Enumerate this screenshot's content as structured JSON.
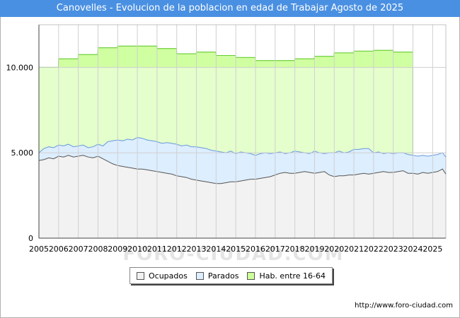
{
  "chart_data": {
    "type": "area",
    "title": "Canovelles - Evolucion de la poblacion en edad de Trabajar Agosto de 2025",
    "xlabel": "",
    "ylabel": "",
    "xlim": [
      2005,
      2025.67
    ],
    "ylim": [
      0,
      12500
    ],
    "x_ticks": [
      "2005",
      "2006",
      "2007",
      "2008",
      "2009",
      "2010",
      "2011",
      "2012",
      "2013",
      "2014",
      "2015",
      "2016",
      "2017",
      "2018",
      "2019",
      "2020",
      "2021",
      "2022",
      "2023",
      "2024",
      "2025"
    ],
    "y_ticks": [
      {
        "value": 0,
        "label": "0"
      },
      {
        "value": 5000,
        "label": "5.000"
      },
      {
        "value": 10000,
        "label": "10.000"
      }
    ],
    "series": [
      {
        "name": "Hab. entre 16-64",
        "color": "#ccff99",
        "x": [
          2005.0,
          2005.99,
          2006.0,
          2006.99,
          2007.0,
          2007.99,
          2008.0,
          2008.99,
          2009.0,
          2009.99,
          2010.0,
          2010.99,
          2011.0,
          2011.99,
          2012.0,
          2012.99,
          2013.0,
          2013.99,
          2014.0,
          2014.99,
          2015.0,
          2015.99,
          2016.0,
          2016.99,
          2017.0,
          2017.99,
          2018.0,
          2018.99,
          2019.0,
          2019.99,
          2020.0,
          2020.99,
          2021.0,
          2021.99,
          2022.0,
          2022.99,
          2023.0,
          2023.99
        ],
        "values": [
          10000,
          10000,
          10500,
          10500,
          10750,
          10750,
          11150,
          11150,
          11250,
          11250,
          11250,
          11250,
          11100,
          11100,
          10800,
          10800,
          10900,
          10900,
          10700,
          10700,
          10580,
          10580,
          10400,
          10400,
          10400,
          10400,
          10500,
          10500,
          10650,
          10650,
          10850,
          10850,
          10950,
          10950,
          11000,
          11000,
          10900,
          10900
        ]
      },
      {
        "name": "Parados",
        "color": "#ddeeff",
        "x": [
          2005.0,
          2005.25,
          2005.5,
          2005.75,
          2006.0,
          2006.25,
          2006.5,
          2006.75,
          2007.0,
          2007.25,
          2007.5,
          2007.75,
          2008.0,
          2008.25,
          2008.5,
          2008.75,
          2009.0,
          2009.25,
          2009.5,
          2009.75,
          2010.0,
          2010.25,
          2010.5,
          2010.75,
          2011.0,
          2011.25,
          2011.5,
          2011.75,
          2012.0,
          2012.25,
          2012.5,
          2012.75,
          2013.0,
          2013.25,
          2013.5,
          2013.75,
          2014.0,
          2014.25,
          2014.5,
          2014.75,
          2015.0,
          2015.25,
          2015.5,
          2015.75,
          2016.0,
          2016.25,
          2016.5,
          2016.75,
          2017.0,
          2017.25,
          2017.5,
          2017.75,
          2018.0,
          2018.25,
          2018.5,
          2018.75,
          2019.0,
          2019.25,
          2019.5,
          2019.75,
          2020.0,
          2020.25,
          2020.5,
          2020.75,
          2021.0,
          2021.25,
          2021.5,
          2021.75,
          2022.0,
          2022.25,
          2022.5,
          2022.75,
          2023.0,
          2023.25,
          2023.5,
          2023.75,
          2024.0,
          2024.25,
          2024.5,
          2024.75,
          2025.0,
          2025.25,
          2025.5,
          2025.67
        ],
        "values": [
          5000,
          5250,
          5350,
          5300,
          5450,
          5400,
          5500,
          5350,
          5400,
          5450,
          5300,
          5350,
          5500,
          5400,
          5650,
          5700,
          5750,
          5700,
          5800,
          5750,
          5900,
          5850,
          5750,
          5700,
          5650,
          5550,
          5600,
          5550,
          5500,
          5400,
          5450,
          5350,
          5350,
          5300,
          5250,
          5150,
          5100,
          5050,
          5000,
          5100,
          4950,
          5050,
          5000,
          4950,
          4850,
          4950,
          5000,
          4950,
          5000,
          5050,
          4950,
          5000,
          5100,
          5050,
          5000,
          4950,
          5100,
          5000,
          4950,
          5000,
          5000,
          5100,
          5000,
          5050,
          5200,
          5200,
          5250,
          5250,
          5000,
          5050,
          4950,
          5000,
          4950,
          5000,
          5000,
          4900,
          4850,
          4800,
          4850,
          4800,
          4850,
          4900,
          5000,
          4750
        ]
      },
      {
        "name": "Ocupados",
        "color": "#f2f2f2",
        "x": [
          2005.0,
          2005.25,
          2005.5,
          2005.75,
          2006.0,
          2006.25,
          2006.5,
          2006.75,
          2007.0,
          2007.25,
          2007.5,
          2007.75,
          2008.0,
          2008.25,
          2008.5,
          2008.75,
          2009.0,
          2009.25,
          2009.5,
          2009.75,
          2010.0,
          2010.25,
          2010.5,
          2010.75,
          2011.0,
          2011.25,
          2011.5,
          2011.75,
          2012.0,
          2012.25,
          2012.5,
          2012.75,
          2013.0,
          2013.25,
          2013.5,
          2013.75,
          2014.0,
          2014.25,
          2014.5,
          2014.75,
          2015.0,
          2015.25,
          2015.5,
          2015.75,
          2016.0,
          2016.25,
          2016.5,
          2016.75,
          2017.0,
          2017.25,
          2017.5,
          2017.75,
          2018.0,
          2018.25,
          2018.5,
          2018.75,
          2019.0,
          2019.25,
          2019.5,
          2019.75,
          2020.0,
          2020.25,
          2020.5,
          2020.75,
          2021.0,
          2021.25,
          2021.5,
          2021.75,
          2022.0,
          2022.25,
          2022.5,
          2022.75,
          2023.0,
          2023.25,
          2023.5,
          2023.75,
          2024.0,
          2024.25,
          2024.5,
          2024.75,
          2025.0,
          2025.25,
          2025.5,
          2025.67
        ],
        "values": [
          4550,
          4600,
          4700,
          4650,
          4800,
          4750,
          4850,
          4750,
          4800,
          4850,
          4750,
          4700,
          4800,
          4650,
          4500,
          4350,
          4250,
          4200,
          4150,
          4100,
          4050,
          4050,
          4000,
          3950,
          3900,
          3850,
          3800,
          3750,
          3650,
          3600,
          3550,
          3450,
          3400,
          3350,
          3300,
          3250,
          3200,
          3200,
          3250,
          3300,
          3300,
          3350,
          3400,
          3450,
          3450,
          3500,
          3550,
          3600,
          3700,
          3800,
          3850,
          3800,
          3800,
          3850,
          3900,
          3850,
          3800,
          3850,
          3900,
          3700,
          3600,
          3650,
          3650,
          3700,
          3700,
          3750,
          3800,
          3750,
          3800,
          3850,
          3900,
          3850,
          3850,
          3900,
          3950,
          3800,
          3800,
          3750,
          3850,
          3800,
          3850,
          3900,
          4050,
          3750
        ]
      }
    ],
    "legend": [
      "Ocupados",
      "Parados",
      "Hab. entre 16-64"
    ],
    "legend_position": "bottom-center"
  },
  "watermark": "FORO-CIUDAD.COM",
  "source": "http://www.foro-ciudad.com"
}
